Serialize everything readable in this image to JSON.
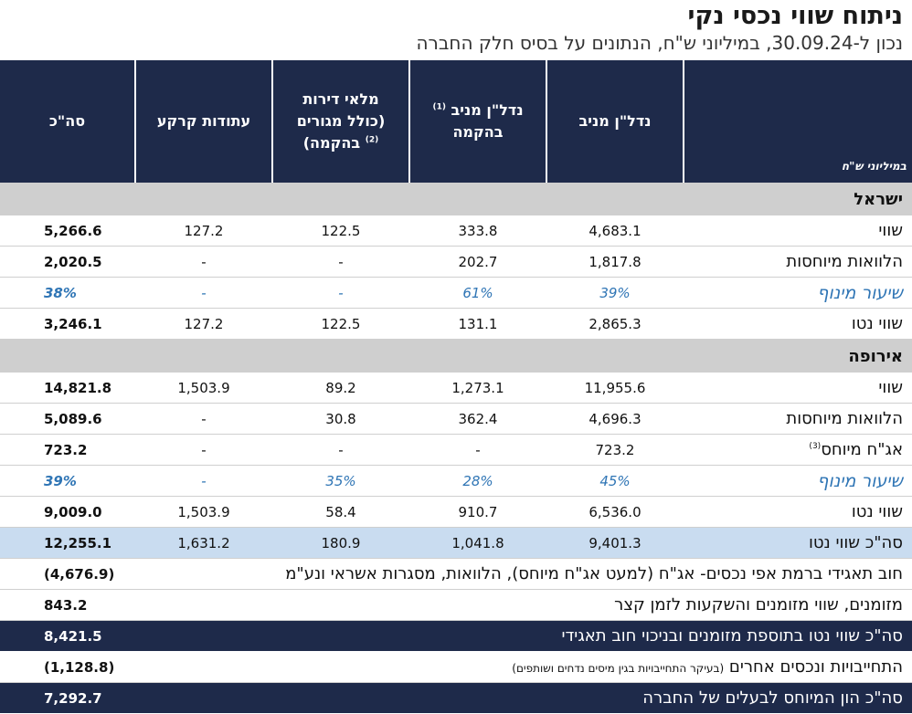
{
  "title": "ניתוח שווי נכסי נקי",
  "subtitle": "נכון ל-30.09.24, במיליוני ש\"ח, הנתונים על בסיס חלק החברה",
  "header": {
    "units_label": "במיליוני ש\"ח",
    "col1": "נדל\"ן מניב",
    "col2_line1": "נדל\"ן מניב",
    "col2_sup": "(1)",
    "col2_line2": "בהקמה",
    "col3_line1": "מלאי דירות",
    "col3_line2": "(כולל מגורים",
    "col3_line3": "בהקמה)",
    "col3_sup": "(2)",
    "col4": "עתודות קרקע",
    "col5": "סה\"כ"
  },
  "israel": {
    "section_label": "ישראל",
    "rows": [
      {
        "label": "שווי",
        "c1": "4,683.1",
        "c2": "333.8",
        "c3": "122.5",
        "c4": "127.2",
        "total": "5,266.6"
      },
      {
        "label": "הלוואות מיוחסות",
        "c1": "1,817.8",
        "c2": "202.7",
        "c3": "-",
        "c4": "-",
        "total": "2,020.5"
      },
      {
        "label": "שיעור מינוף",
        "c1": "39%",
        "c2": "61%",
        "c3": "-",
        "c4": "-",
        "total": "38%"
      },
      {
        "label": "שווי נטו",
        "c1": "2,865.3",
        "c2": "131.1",
        "c3": "122.5",
        "c4": "127.2",
        "total": "3,246.1"
      }
    ]
  },
  "europe": {
    "section_label": "אירופה",
    "rows": [
      {
        "label": "שווי",
        "c1": "11,955.6",
        "c2": "1,273.1",
        "c3": "89.2",
        "c4": "1,503.9",
        "total": "14,821.8"
      },
      {
        "label": "הלוואות מיוחסות",
        "c1": "4,696.3",
        "c2": "362.4",
        "c3": "30.8",
        "c4": "-",
        "total": "5,089.6"
      },
      {
        "label": "אג\"ח מיוחס",
        "sup": "(3)",
        "c1": "723.2",
        "c2": "-",
        "c3": "-",
        "c4": "-",
        "total": "723.2"
      },
      {
        "label": "שיעור מינוף",
        "c1": "45%",
        "c2": "28%",
        "c3": "35%",
        "c4": "-",
        "total": "39%"
      },
      {
        "label": "שווי נטו",
        "c1": "6,536.0",
        "c2": "910.7",
        "c3": "58.4",
        "c4": "1,503.9",
        "total": "9,009.0"
      }
    ]
  },
  "summary": {
    "label": "סה\"כ שווי נטו",
    "c1": "9,401.3",
    "c2": "1,041.8",
    "c3": "180.9",
    "c4": "1,631.2",
    "total": "12,255.1"
  },
  "bottom": [
    {
      "label": "חוב תאגידי ברמת אפי נכסים- אג\"ח (למעט אג\"ח מיוחס), הלוואות, מסגרות אשראי ונע\"מ",
      "total": "(4,676.9)"
    },
    {
      "label": "מזומנים, שווי מזומנים והשקעות לזמן קצר",
      "total": "843.2"
    },
    {
      "label": "סה\"כ שווי נטו בתוספת מזומנים ובניכוי חוב תאגידי",
      "total": "8,421.5"
    },
    {
      "label": "התחייבויות ונכסים אחרים",
      "note": "(בעיקר התחייבויות בגין מיסים נדחים ושותפים)",
      "total": "(1,128.8)"
    },
    {
      "label": "סה\"כ הון המיוחס לבעלים של החברה",
      "total": "7,292.7"
    }
  ]
}
